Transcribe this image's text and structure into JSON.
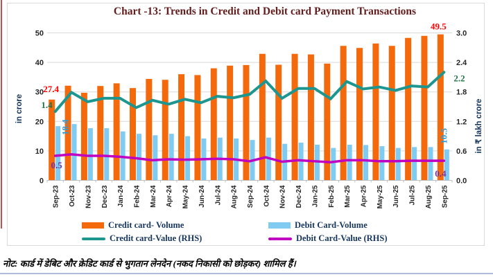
{
  "chart_data": {
    "type": "bar+line combo",
    "title": "Chart -13: Trends in Credit and Debit card Payment Transactions",
    "categories": [
      "Sep-23",
      "Oct-23",
      "Nov-23",
      "Dec-23",
      "Jan-24",
      "Feb-24",
      "Mar-24",
      "Apr-24",
      "May-24",
      "Jun-24",
      "Jul-24",
      "Aug-24",
      "Sep-24",
      "Oct-24",
      "Nov-24",
      "Dec-24",
      "Jan-25",
      "Feb-25",
      "Mar-25",
      "Apr-25",
      "May-25",
      "Jun-25",
      "Jul-25",
      "Aug-25",
      "Sep-25"
    ],
    "series": [
      {
        "name": "Credit card- Volume",
        "type": "bar",
        "axis": "left",
        "color": "#F4690B",
        "values": [
          27.4,
          32.1,
          29.7,
          32.0,
          32.9,
          31.3,
          34.4,
          34.1,
          36.0,
          35.7,
          38.0,
          38.9,
          39.1,
          42.9,
          39.2,
          42.9,
          42.7,
          39.6,
          45.6,
          44.9,
          46.4,
          45.6,
          48.3,
          49.0,
          49.5
        ]
      },
      {
        "name": "Debit Card-Volume",
        "type": "bar",
        "axis": "left",
        "color": "#7FCBF1",
        "values": [
          18.4,
          19.1,
          17.7,
          17.7,
          16.6,
          15.8,
          15.3,
          15.8,
          15.0,
          14.2,
          14.5,
          14.2,
          13.7,
          14.5,
          12.4,
          12.8,
          12.1,
          11.0,
          12.1,
          12.0,
          11.6,
          11.0,
          11.3,
          11.3,
          10.5
        ]
      },
      {
        "name": "Credit card-Value (RHS)",
        "type": "line",
        "axis": "right",
        "color": "#1D9690",
        "values": [
          1.4,
          1.79,
          1.6,
          1.67,
          1.67,
          1.48,
          1.63,
          1.55,
          1.65,
          1.58,
          1.71,
          1.68,
          1.75,
          2.02,
          1.67,
          1.87,
          1.87,
          1.66,
          2.01,
          1.86,
          1.9,
          1.83,
          1.92,
          1.9,
          2.2
        ]
      },
      {
        "name": "Debit Card-Value (RHS)",
        "type": "line",
        "axis": "right",
        "color": "#C000C0",
        "values": [
          0.5,
          0.53,
          0.5,
          0.5,
          0.48,
          0.45,
          0.41,
          0.43,
          0.42,
          0.43,
          0.44,
          0.43,
          0.39,
          0.47,
          0.38,
          0.41,
          0.39,
          0.37,
          0.41,
          0.41,
          0.39,
          0.39,
          0.4,
          0.4,
          0.4
        ]
      }
    ],
    "left_axis": {
      "title": "in crore",
      "min": 0,
      "max": 50,
      "step": 10,
      "ticks": [
        "0",
        "10",
        "20",
        "30",
        "40",
        "50"
      ]
    },
    "right_axis": {
      "title": "in ₹ lakh crore",
      "min": 0,
      "max": 3,
      "step": 0.6,
      "ticks": [
        "0.0",
        "0.6",
        "1.2",
        "1.8",
        "2.4",
        "3.0"
      ]
    },
    "annotations": [
      {
        "text": "27.4",
        "color": "#FF0000",
        "series": 0,
        "point": "first"
      },
      {
        "text": "49.5",
        "color": "#FF0000",
        "series": 0,
        "point": "last"
      },
      {
        "text": "18.4",
        "color": "#2E9BD8",
        "series": 1,
        "point": "first",
        "rotated": true
      },
      {
        "text": "10.5",
        "color": "#2E9BD8",
        "series": 1,
        "point": "last",
        "rotated": true
      },
      {
        "text": "1.4",
        "color": "#217346",
        "series": 2,
        "point": "first"
      },
      {
        "text": "2.2",
        "color": "#217346",
        "series": 2,
        "point": "last"
      },
      {
        "text": "0.5",
        "color": "#7030A0",
        "series": 3,
        "point": "first"
      },
      {
        "text": "0.4",
        "color": "#7030A0",
        "series": 3,
        "point": "last"
      }
    ],
    "grid": true,
    "legend_position": "bottom"
  },
  "note": {
    "text": "नोट: कार्ड में डेबिट और क्रेडिट कार्ड से भुगतान लेनदेन (नकद निकासी को छोड़कर) शामिल हैं।"
  }
}
